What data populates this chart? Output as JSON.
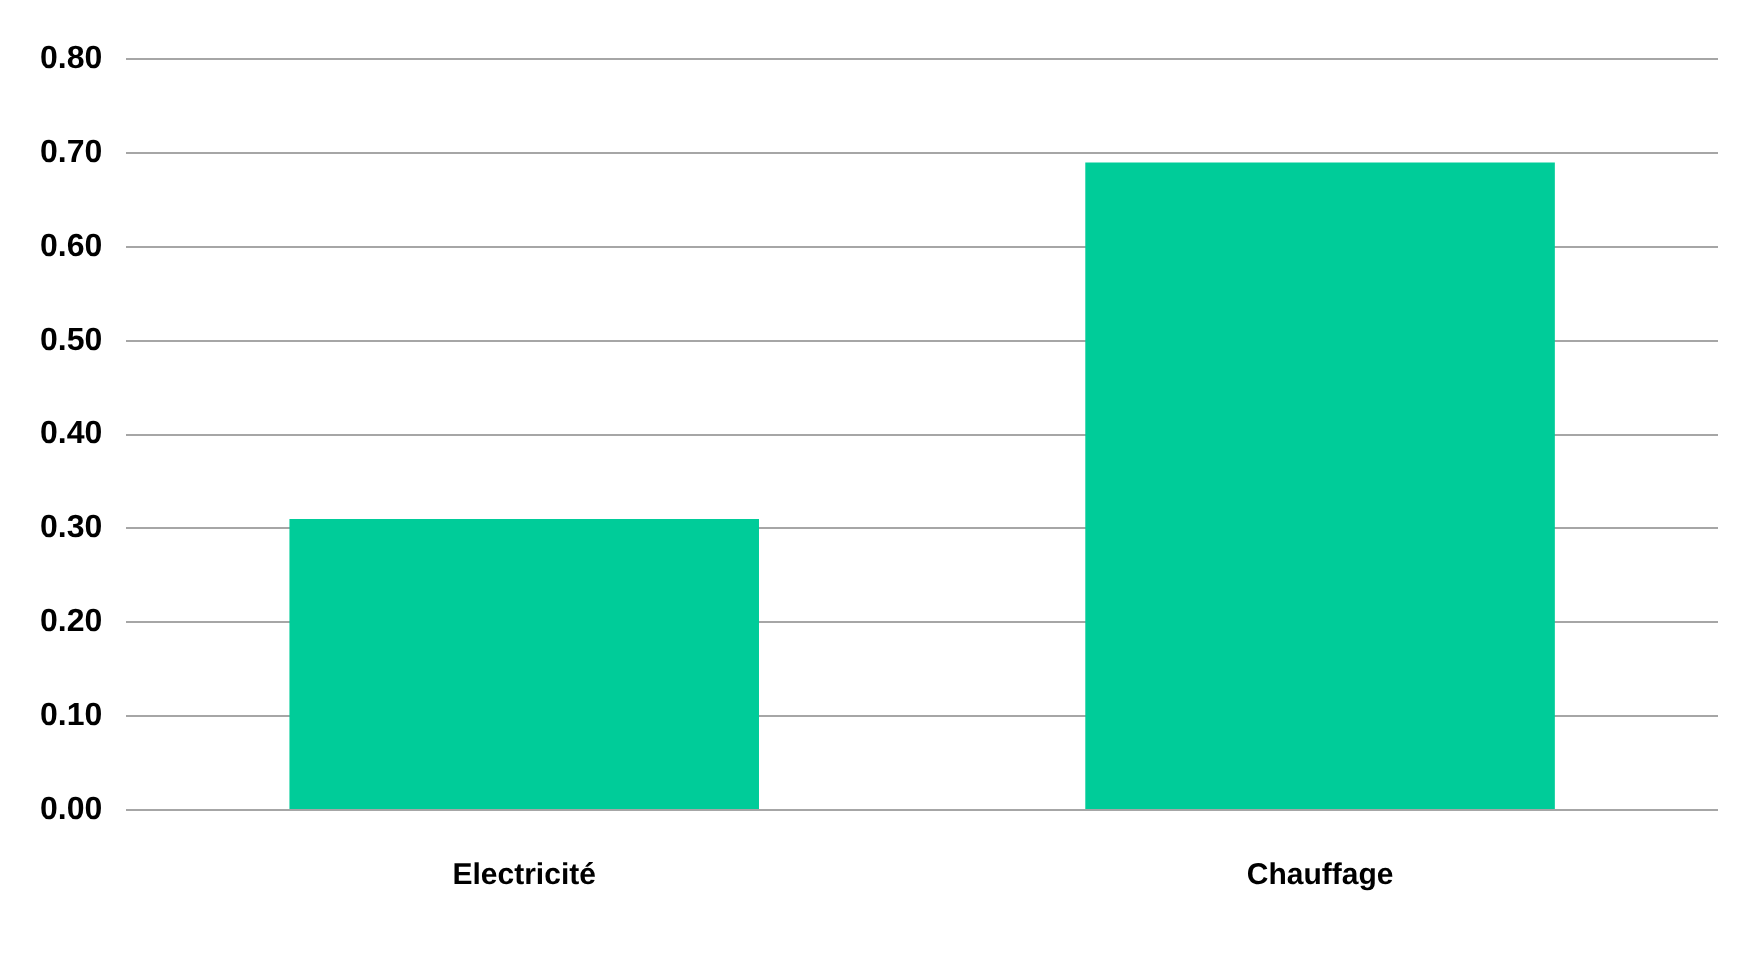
{
  "chart_data": {
    "type": "bar",
    "categories": [
      "Electricité",
      "Chauffage"
    ],
    "values": [
      0.31,
      0.69
    ],
    "color": "#00cc99",
    "ylim": [
      0,
      0.8
    ],
    "yticks": [
      {
        "value": 0,
        "label": "0.00"
      },
      {
        "value": 0.1,
        "label": "0.10"
      },
      {
        "value": 0.2,
        "label": "0.20"
      },
      {
        "value": 0.3,
        "label": "0.30"
      },
      {
        "value": 0.4,
        "label": "0.40"
      },
      {
        "value": 0.5,
        "label": "0.50"
      },
      {
        "value": 0.6,
        "label": "0.60"
      },
      {
        "value": 0.7,
        "label": "0.70"
      },
      {
        "value": 0.8,
        "label": "0.80"
      }
    ],
    "grid": "y"
  }
}
